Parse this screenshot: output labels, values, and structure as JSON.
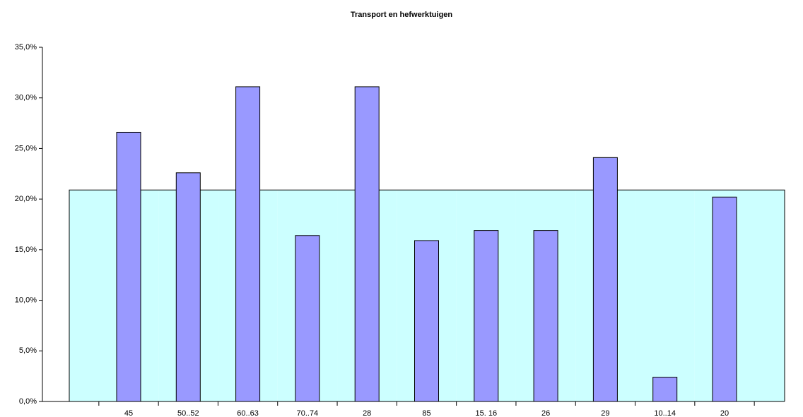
{
  "chart_data": {
    "type": "bar",
    "title": "Transport en hefwerktuigen",
    "categories": [
      "45",
      "50..52",
      "60..63",
      "70..74",
      "28",
      "85",
      "15. 16",
      "26",
      "29",
      "10..14",
      "20"
    ],
    "series": [
      {
        "color": "#9999ff",
        "values": [
          26.6,
          22.6,
          31.1,
          16.4,
          31.1,
          15.9,
          16.9,
          16.9,
          24.1,
          2.4,
          20.2
        ]
      },
      {
        "type": "area",
        "color": "#ccffff",
        "values": [
          20.9,
          20.9,
          20.9,
          20.9,
          20.9,
          20.9,
          20.9,
          20.9,
          20.9,
          20.9,
          20.9
        ]
      }
    ],
    "ylim": [
      0,
      35
    ],
    "yticks": [
      {
        "value": 0,
        "label": "0,0%"
      },
      {
        "value": 5,
        "label": "5,0%"
      },
      {
        "value": 10,
        "label": "10,0%"
      },
      {
        "value": 15,
        "label": "15,0%"
      },
      {
        "value": 20,
        "label": "20,0%"
      },
      {
        "value": 25,
        "label": "25,0%"
      },
      {
        "value": 30,
        "label": "30,0%"
      },
      {
        "value": 35,
        "label": "35,0%"
      }
    ],
    "grid": false
  }
}
